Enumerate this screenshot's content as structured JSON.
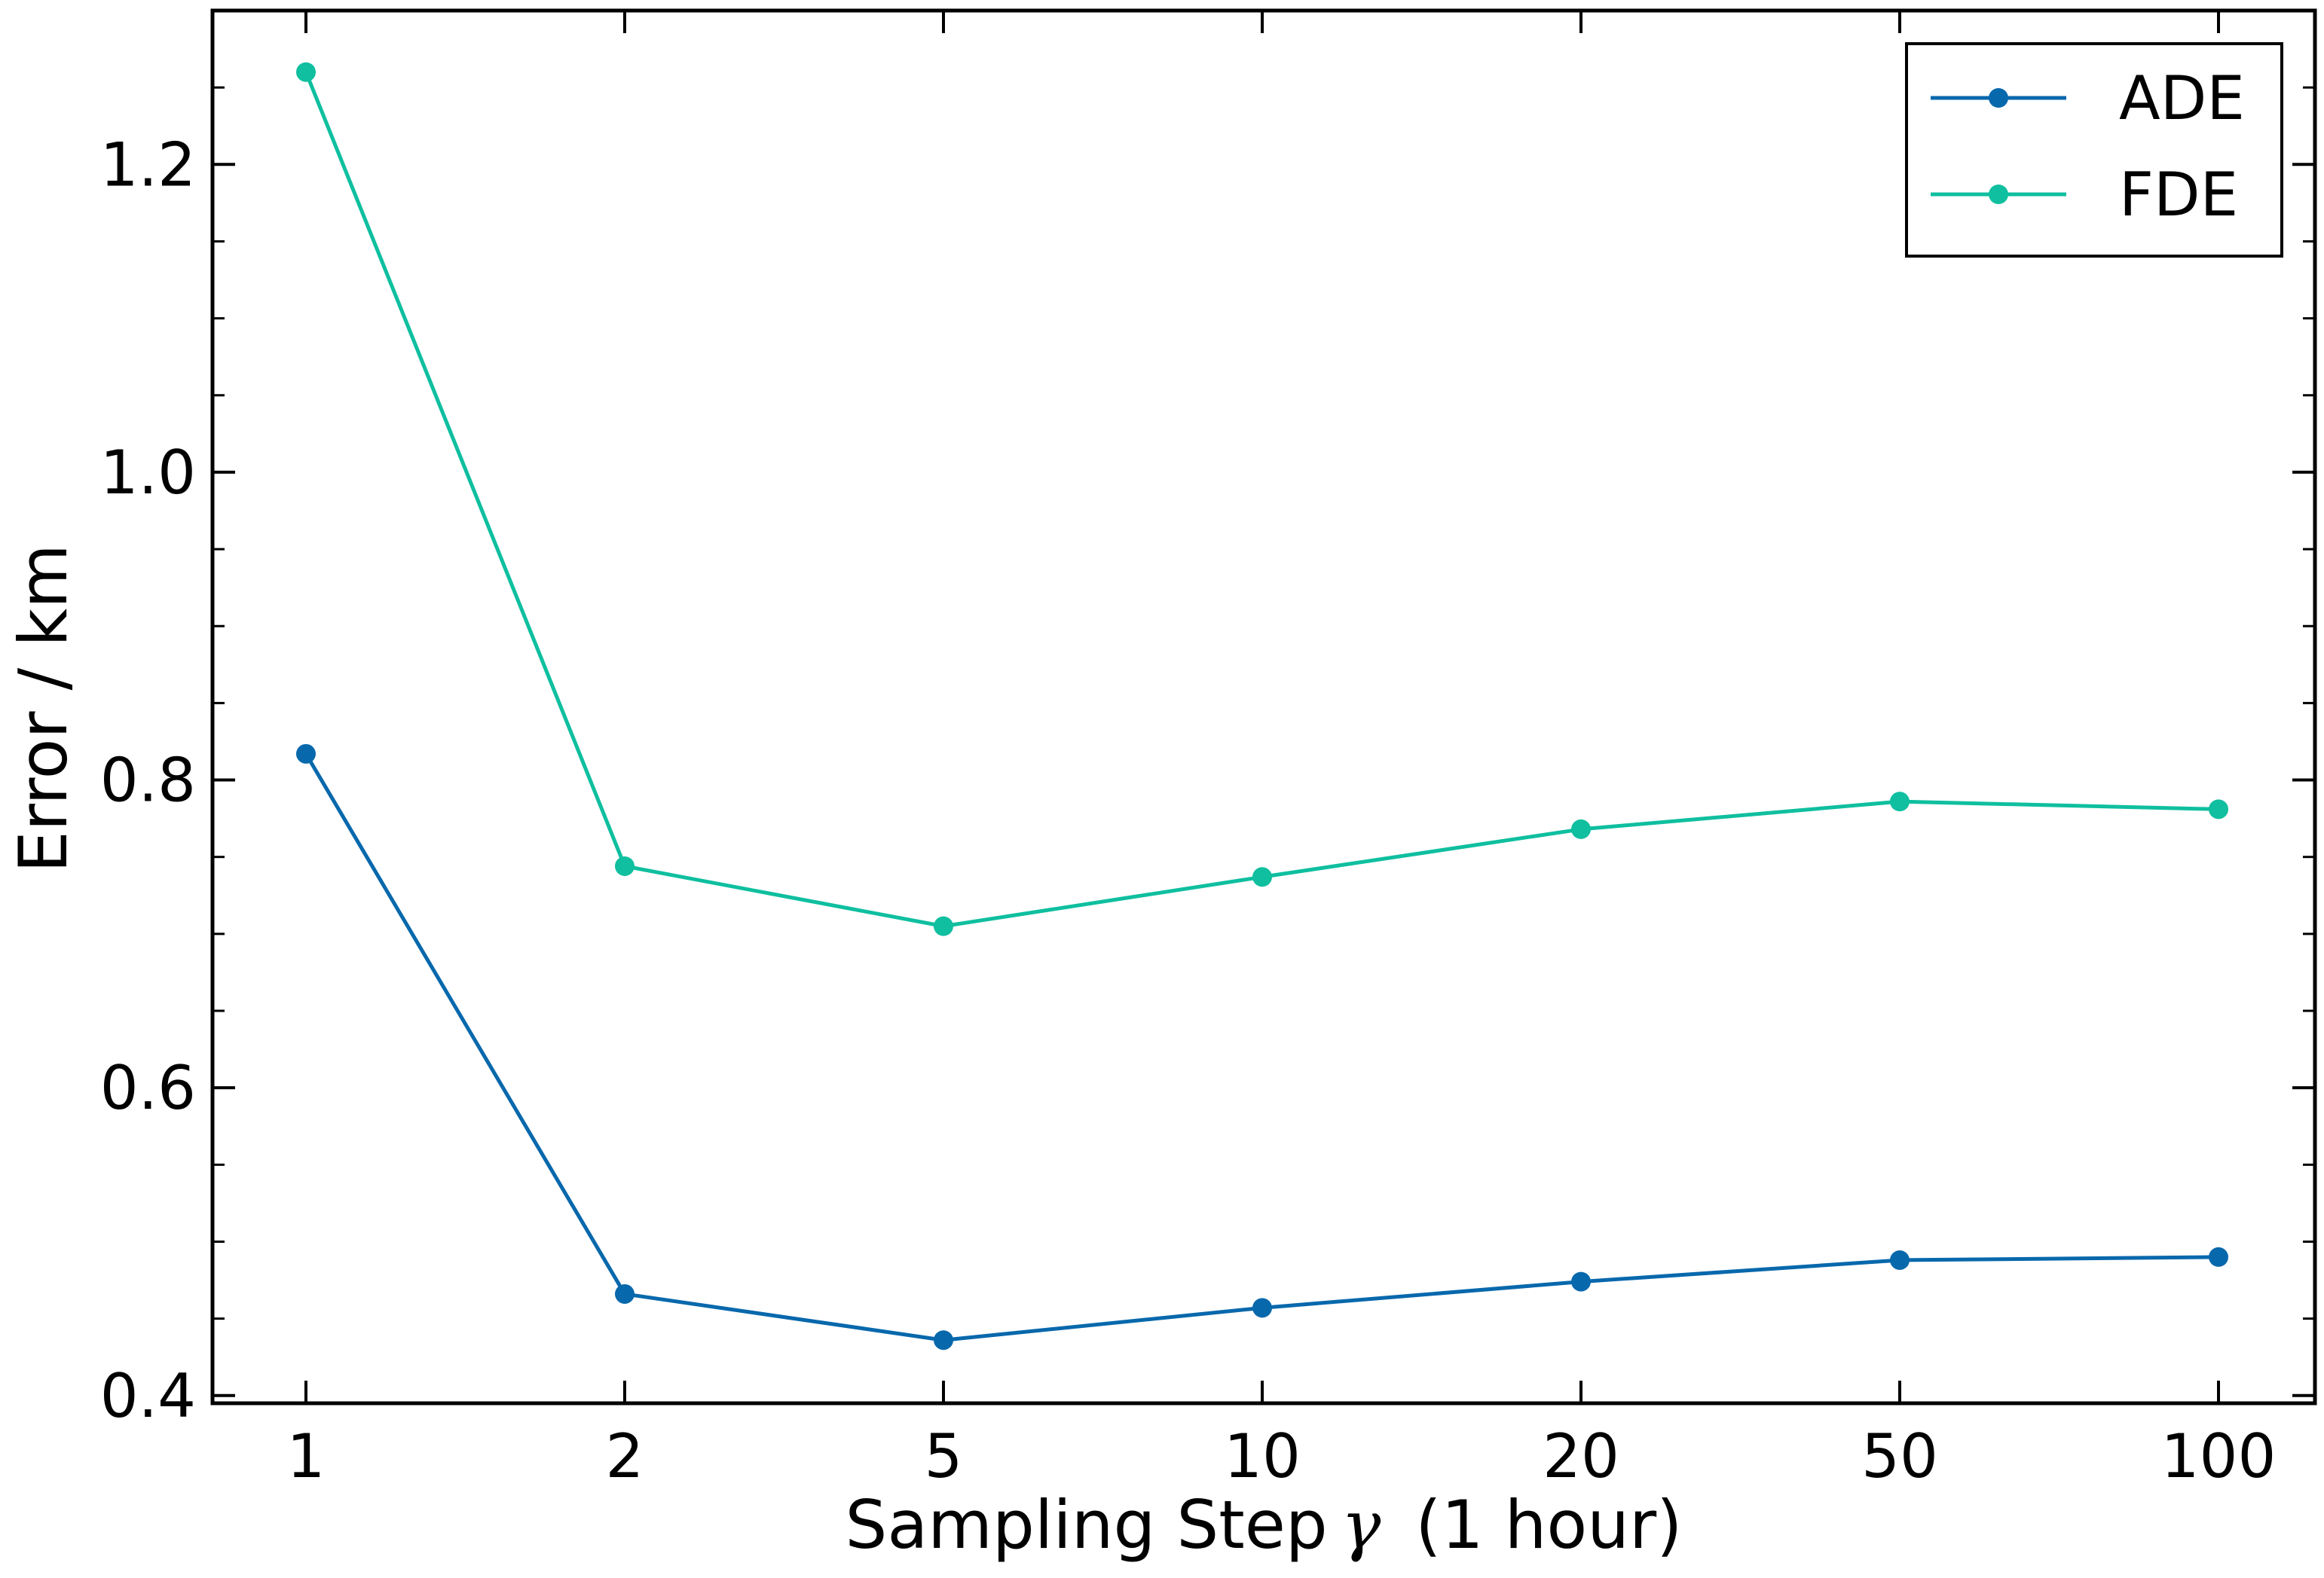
{
  "chart_data": {
    "type": "line",
    "xlabel": "Sampling Step",
    "xlabel_symbol": "γ",
    "xlabel_suffix": " (1 hour)",
    "ylabel": "Error / km",
    "categories": [
      "1",
      "2",
      "5",
      "10",
      "20",
      "50",
      "100"
    ],
    "ylim": [
      0.395,
      1.3
    ],
    "yticks": [
      "0.4",
      "0.6",
      "0.8",
      "1.0",
      "1.2"
    ],
    "ytick_values": [
      0.4,
      0.6,
      0.8,
      1.0,
      1.2
    ],
    "grid": false,
    "legend_position": "top-right",
    "series": [
      {
        "name": "ADE",
        "color": "#0868ac",
        "values": [
          0.817,
          0.466,
          0.436,
          0.457,
          0.474,
          0.488,
          0.49
        ]
      },
      {
        "name": "FDE",
        "color": "#0fbf9f",
        "values": [
          1.26,
          0.744,
          0.705,
          0.737,
          0.768,
          0.786,
          0.781
        ]
      }
    ]
  }
}
